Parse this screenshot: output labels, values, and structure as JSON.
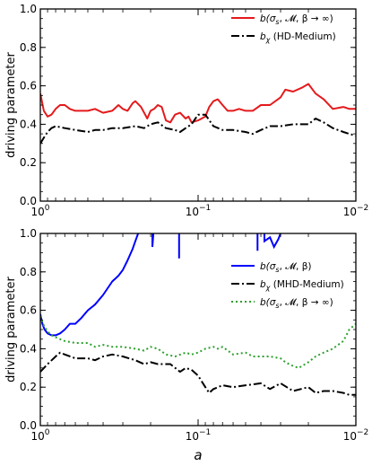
{
  "chart_data": [
    {
      "type": "line",
      "ylabel": "driving parameter",
      "xlabel": "",
      "xscale": "log",
      "xaxis_direction": "decreasing",
      "xlim": [
        1.0,
        0.01
      ],
      "ylim": [
        0.0,
        1.0
      ],
      "xticks": [
        {
          "value": 1.0,
          "base": "10",
          "exp": "0"
        },
        {
          "value": 0.1,
          "base": "10",
          "exp": "−1"
        },
        {
          "value": 0.01,
          "base": "10",
          "exp": "−2"
        }
      ],
      "yticks": [
        "0.0",
        "0.2",
        "0.4",
        "0.6",
        "0.8",
        "1.0"
      ],
      "grid": false,
      "legend_placement": "top-right",
      "series": [
        {
          "name": "b(σs, 𝓜, β → ∞)",
          "legend": {
            "base": "b(",
            "sigma": "σ",
            "sub": "s",
            "rest": ", 𝓜, β → ∞)"
          },
          "color": "#e41a1c",
          "style": "solid",
          "points": [
            [
              1.0,
              0.56
            ],
            [
              0.95,
              0.47
            ],
            [
              0.9,
              0.44
            ],
            [
              0.85,
              0.45
            ],
            [
              0.8,
              0.48
            ],
            [
              0.75,
              0.5
            ],
            [
              0.7,
              0.5
            ],
            [
              0.65,
              0.48
            ],
            [
              0.6,
              0.47
            ],
            [
              0.5,
              0.47
            ],
            [
              0.45,
              0.48
            ],
            [
              0.4,
              0.46
            ],
            [
              0.35,
              0.47
            ],
            [
              0.32,
              0.5
            ],
            [
              0.3,
              0.48
            ],
            [
              0.28,
              0.47
            ],
            [
              0.26,
              0.51
            ],
            [
              0.25,
              0.52
            ],
            [
              0.23,
              0.49
            ],
            [
              0.21,
              0.43
            ],
            [
              0.2,
              0.47
            ],
            [
              0.19,
              0.48
            ],
            [
              0.18,
              0.5
            ],
            [
              0.17,
              0.49
            ],
            [
              0.16,
              0.42
            ],
            [
              0.15,
              0.41
            ],
            [
              0.14,
              0.45
            ],
            [
              0.13,
              0.46
            ],
            [
              0.12,
              0.43
            ],
            [
              0.115,
              0.44
            ],
            [
              0.11,
              0.41
            ],
            [
              0.1,
              0.42
            ],
            [
              0.09,
              0.44
            ],
            [
              0.085,
              0.49
            ],
            [
              0.08,
              0.52
            ],
            [
              0.075,
              0.53
            ],
            [
              0.07,
              0.5
            ],
            [
              0.065,
              0.47
            ],
            [
              0.06,
              0.47
            ],
            [
              0.055,
              0.48
            ],
            [
              0.05,
              0.47
            ],
            [
              0.045,
              0.47
            ],
            [
              0.04,
              0.5
            ],
            [
              0.035,
              0.5
            ],
            [
              0.03,
              0.54
            ],
            [
              0.028,
              0.58
            ],
            [
              0.025,
              0.57
            ],
            [
              0.022,
              0.59
            ],
            [
              0.02,
              0.61
            ],
            [
              0.018,
              0.56
            ],
            [
              0.016,
              0.53
            ],
            [
              0.014,
              0.48
            ],
            [
              0.012,
              0.49
            ],
            [
              0.011,
              0.48
            ],
            [
              0.01,
              0.48
            ]
          ]
        },
        {
          "name": "bχ (HD-Medium)",
          "legend": {
            "base": "b",
            "sub": "χ",
            "rest": " (HD-Medium)"
          },
          "color": "#000000",
          "style": "dashdot",
          "points": [
            [
              1.0,
              0.3
            ],
            [
              0.95,
              0.33
            ],
            [
              0.9,
              0.36
            ],
            [
              0.85,
              0.38
            ],
            [
              0.8,
              0.39
            ],
            [
              0.7,
              0.38
            ],
            [
              0.6,
              0.37
            ],
            [
              0.5,
              0.36
            ],
            [
              0.45,
              0.37
            ],
            [
              0.4,
              0.37
            ],
            [
              0.35,
              0.38
            ],
            [
              0.3,
              0.38
            ],
            [
              0.25,
              0.39
            ],
            [
              0.22,
              0.38
            ],
            [
              0.2,
              0.4
            ],
            [
              0.18,
              0.41
            ],
            [
              0.16,
              0.38
            ],
            [
              0.14,
              0.37
            ],
            [
              0.13,
              0.36
            ],
            [
              0.12,
              0.38
            ],
            [
              0.11,
              0.4
            ],
            [
              0.1,
              0.45
            ],
            [
              0.09,
              0.45
            ],
            [
              0.08,
              0.39
            ],
            [
              0.07,
              0.37
            ],
            [
              0.06,
              0.37
            ],
            [
              0.05,
              0.36
            ],
            [
              0.045,
              0.35
            ],
            [
              0.04,
              0.37
            ],
            [
              0.035,
              0.39
            ],
            [
              0.03,
              0.39
            ],
            [
              0.025,
              0.4
            ],
            [
              0.02,
              0.4
            ],
            [
              0.018,
              0.43
            ],
            [
              0.016,
              0.41
            ],
            [
              0.014,
              0.38
            ],
            [
              0.012,
              0.36
            ],
            [
              0.011,
              0.35
            ],
            [
              0.01,
              0.34
            ]
          ]
        }
      ]
    },
    {
      "type": "line",
      "ylabel": "driving parameter",
      "xlabel": "a",
      "xscale": "log",
      "xaxis_direction": "decreasing",
      "xlim": [
        1.0,
        0.01
      ],
      "ylim": [
        0.0,
        1.0
      ],
      "xticks": [
        {
          "value": 1.0,
          "base": "10",
          "exp": "0"
        },
        {
          "value": 0.1,
          "base": "10",
          "exp": "−1"
        },
        {
          "value": 0.01,
          "base": "10",
          "exp": "−2"
        }
      ],
      "yticks": [
        "0.0",
        "0.2",
        "0.4",
        "0.6",
        "0.8",
        "1.0"
      ],
      "grid": false,
      "legend_placement": "center-right",
      "series": [
        {
          "name": "b(σs, 𝓜, β)",
          "legend": {
            "base": "b(",
            "sigma": "σ",
            "sub": "s",
            "rest": ", 𝓜, β)"
          },
          "color": "#0000ff",
          "style": "solid",
          "points": [
            [
              1.0,
              0.58
            ],
            [
              0.97,
              0.53
            ],
            [
              0.94,
              0.5
            ],
            [
              0.9,
              0.48
            ],
            [
              0.85,
              0.47
            ],
            [
              0.8,
              0.47
            ],
            [
              0.75,
              0.48
            ],
            [
              0.7,
              0.5
            ],
            [
              0.65,
              0.53
            ],
            [
              0.6,
              0.53
            ],
            [
              0.55,
              0.56
            ],
            [
              0.5,
              0.6
            ],
            [
              0.45,
              0.63
            ],
            [
              0.4,
              0.68
            ],
            [
              0.35,
              0.75
            ],
            [
              0.32,
              0.78
            ],
            [
              0.3,
              0.81
            ],
            [
              0.28,
              0.86
            ],
            [
              0.26,
              0.92
            ],
            [
              0.25,
              0.96
            ],
            [
              0.24,
              1.0
            ]
          ],
          "extra_segments": [
            [
              [
                0.195,
                1.0
              ],
              [
                0.195,
                0.93
              ],
              [
                0.192,
                1.0
              ]
            ],
            [
              [
                0.132,
                1.0
              ],
              [
                0.132,
                0.87
              ]
            ],
            [
              [
                0.042,
                1.0
              ],
              [
                0.042,
                0.91
              ]
            ],
            [
              [
                0.038,
                1.0
              ],
              [
                0.038,
                0.96
              ],
              [
                0.035,
                0.98
              ],
              [
                0.033,
                0.93
              ],
              [
                0.031,
                0.97
              ],
              [
                0.03,
                1.0
              ]
            ]
          ]
        },
        {
          "name": "bχ (MHD-Medium)",
          "legend": {
            "base": "b",
            "sub": "χ",
            "rest": " (MHD-Medium)"
          },
          "color": "#000000",
          "style": "dashdot",
          "points": [
            [
              1.0,
              0.28
            ],
            [
              0.9,
              0.32
            ],
            [
              0.8,
              0.36
            ],
            [
              0.75,
              0.38
            ],
            [
              0.7,
              0.37
            ],
            [
              0.6,
              0.35
            ],
            [
              0.5,
              0.35
            ],
            [
              0.45,
              0.34
            ],
            [
              0.4,
              0.36
            ],
            [
              0.35,
              0.37
            ],
            [
              0.3,
              0.36
            ],
            [
              0.25,
              0.34
            ],
            [
              0.22,
              0.32
            ],
            [
              0.2,
              0.33
            ],
            [
              0.18,
              0.32
            ],
            [
              0.15,
              0.32
            ],
            [
              0.13,
              0.28
            ],
            [
              0.12,
              0.3
            ],
            [
              0.11,
              0.29
            ],
            [
              0.1,
              0.26
            ],
            [
              0.09,
              0.2
            ],
            [
              0.085,
              0.17
            ],
            [
              0.08,
              0.19
            ],
            [
              0.07,
              0.21
            ],
            [
              0.06,
              0.2
            ],
            [
              0.05,
              0.21
            ],
            [
              0.04,
              0.22
            ],
            [
              0.035,
              0.19
            ],
            [
              0.03,
              0.22
            ],
            [
              0.025,
              0.18
            ],
            [
              0.02,
              0.2
            ],
            [
              0.018,
              0.17
            ],
            [
              0.016,
              0.18
            ],
            [
              0.014,
              0.18
            ],
            [
              0.012,
              0.17
            ],
            [
              0.011,
              0.16
            ],
            [
              0.01,
              0.16
            ]
          ]
        },
        {
          "name": "b(σs, 𝓜, β → ∞)",
          "legend": {
            "base": "b(",
            "sigma": "σ",
            "sub": "s",
            "rest": ", 𝓜, β → ∞)"
          },
          "color": "#2ca02c",
          "style": "dotted",
          "points": [
            [
              1.0,
              0.57
            ],
            [
              0.95,
              0.52
            ],
            [
              0.9,
              0.49
            ],
            [
              0.85,
              0.47
            ],
            [
              0.8,
              0.46
            ],
            [
              0.75,
              0.45
            ],
            [
              0.7,
              0.44
            ],
            [
              0.6,
              0.43
            ],
            [
              0.5,
              0.43
            ],
            [
              0.45,
              0.41
            ],
            [
              0.4,
              0.42
            ],
            [
              0.35,
              0.41
            ],
            [
              0.3,
              0.41
            ],
            [
              0.25,
              0.4
            ],
            [
              0.22,
              0.39
            ],
            [
              0.2,
              0.41
            ],
            [
              0.18,
              0.4
            ],
            [
              0.16,
              0.37
            ],
            [
              0.14,
              0.36
            ],
            [
              0.12,
              0.38
            ],
            [
              0.11,
              0.37
            ],
            [
              0.1,
              0.38
            ],
            [
              0.09,
              0.4
            ],
            [
              0.08,
              0.41
            ],
            [
              0.075,
              0.4
            ],
            [
              0.07,
              0.41
            ],
            [
              0.06,
              0.37
            ],
            [
              0.05,
              0.38
            ],
            [
              0.045,
              0.36
            ],
            [
              0.04,
              0.36
            ],
            [
              0.035,
              0.36
            ],
            [
              0.03,
              0.35
            ],
            [
              0.028,
              0.33
            ],
            [
              0.025,
              0.31
            ],
            [
              0.023,
              0.3
            ],
            [
              0.02,
              0.33
            ],
            [
              0.018,
              0.36
            ],
            [
              0.016,
              0.38
            ],
            [
              0.014,
              0.4
            ],
            [
              0.012,
              0.44
            ],
            [
              0.011,
              0.5
            ],
            [
              0.01,
              0.53
            ]
          ]
        }
      ]
    }
  ]
}
